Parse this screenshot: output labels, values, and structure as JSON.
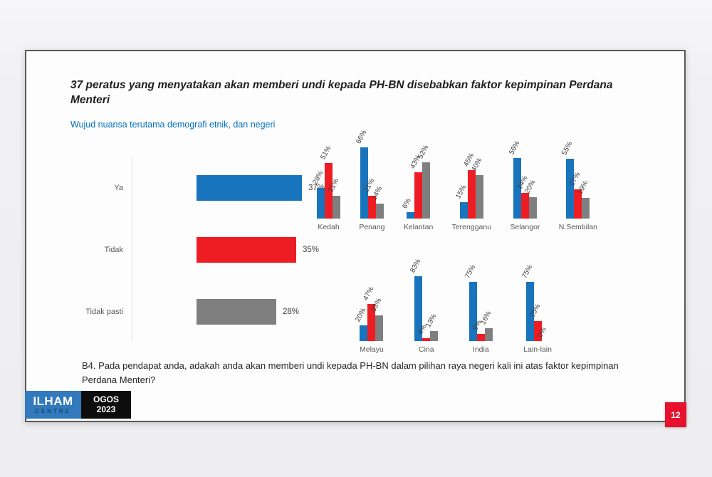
{
  "slide": {
    "title": "37 peratus yang menyatakan akan memberi undi kepada PH-BN disebabkan faktor kepimpinan Perdana Menteri",
    "subtitle": "Wujud nuansa terutama demografi etnik, dan negeri",
    "question": "B4. Pada pendapat anda, adakah anda akan memberi undi kepada PH-BN dalam pilihan raya negeri kali ini atas faktor kepimpinan Perdana Menteri?",
    "page_number": "12",
    "logo": {
      "name": "ILHAM",
      "sub": "CENTRE",
      "badge_line1": "OGOS",
      "badge_line2": "2023"
    }
  },
  "colors": {
    "blue": "#1874bc",
    "red": "#ee1c23",
    "gray": "#7f7f7f",
    "accent_red": "#e8112d",
    "subtitle_blue": "#0070c0"
  },
  "chart_data": [
    {
      "type": "bar",
      "orientation": "horizontal",
      "categories": [
        "Ya",
        "Tidak",
        "Tidak pasti"
      ],
      "values": [
        37,
        35,
        28
      ],
      "labels": [
        "37%",
        "35%",
        "28%"
      ],
      "bar_colors": [
        "#1874bc",
        "#ee1c23",
        "#7f7f7f"
      ],
      "title": "",
      "xlabel": "",
      "ylabel": "",
      "xlim": [
        0,
        45
      ],
      "grid": false,
      "legend": false
    },
    {
      "type": "bar",
      "orientation": "vertical-grouped",
      "categories": [
        "Kedah",
        "Penang",
        "Kelantan",
        "Terengganu",
        "Selangor",
        "N.Sembilan"
      ],
      "series": [
        {
          "color_name": "blue",
          "color": "#1874bc",
          "values": [
            28,
            66,
            6,
            15,
            56,
            55
          ]
        },
        {
          "color_name": "red",
          "color": "#ee1c23",
          "values": [
            51,
            21,
            43,
            45,
            24,
            27
          ]
        },
        {
          "color_name": "gray",
          "color": "#7f7f7f",
          "values": [
            21,
            14,
            52,
            40,
            20,
            19
          ]
        }
      ],
      "value_suffix": "%",
      "title": "",
      "xlabel": "",
      "ylabel": "",
      "ylim": [
        0,
        70
      ],
      "grid": false,
      "legend": false
    },
    {
      "type": "bar",
      "orientation": "vertical-grouped",
      "categories": [
        "Melayu",
        "Cina",
        "India",
        "Lain-lain"
      ],
      "series": [
        {
          "color_name": "blue",
          "color": "#1874bc",
          "values": [
            20,
            83,
            75,
            75
          ]
        },
        {
          "color_name": "red",
          "color": "#ee1c23",
          "values": [
            47,
            4,
            9,
            25
          ]
        },
        {
          "color_name": "gray",
          "color": "#7f7f7f",
          "values": [
            33,
            13,
            16,
            0
          ]
        }
      ],
      "value_suffix": "%",
      "title": "",
      "xlabel": "",
      "ylabel": "",
      "ylim": [
        0,
        90
      ],
      "grid": false,
      "legend": false
    }
  ]
}
